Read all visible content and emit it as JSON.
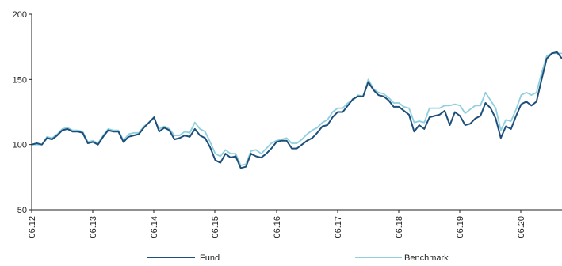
{
  "chart_data": {
    "type": "line",
    "title": "",
    "xlabel": "",
    "ylabel": "",
    "ylim": [
      50,
      200
    ],
    "yticks": [
      50,
      100,
      150,
      200
    ],
    "xticks": [
      "06.12",
      "06.13",
      "06.14",
      "06.15",
      "06.16",
      "06.17",
      "06.18",
      "06.19",
      "06.20"
    ],
    "grid": false,
    "legend_position": "bottom",
    "colors": {
      "Fund": "#1d4f7a",
      "Benchmark": "#8fcfde"
    },
    "series": [
      {
        "name": "Fund",
        "values": [
          100,
          101,
          100,
          105,
          104,
          107,
          111,
          112,
          110,
          110,
          109,
          101,
          102,
          100,
          106,
          111,
          110,
          110,
          102,
          106,
          107,
          108,
          113,
          117,
          121,
          110,
          113,
          111,
          104,
          105,
          107,
          106,
          112,
          107,
          105,
          98,
          88,
          86,
          93,
          90,
          91,
          82,
          83,
          93,
          91,
          90,
          93,
          97,
          102,
          103,
          103,
          97,
          97,
          100,
          103,
          105,
          109,
          114,
          115,
          121,
          125,
          125,
          130,
          135,
          137,
          137,
          148,
          142,
          138,
          137,
          134,
          129,
          129,
          126,
          123,
          110,
          115,
          112,
          121,
          122,
          123,
          126,
          115,
          125,
          122,
          115,
          116,
          120,
          122,
          132,
          128,
          120,
          105,
          114,
          112,
          122,
          131,
          133,
          130,
          133,
          150,
          166,
          170,
          171,
          166
        ]
      },
      {
        "name": "Benchmark",
        "values": [
          100,
          100,
          100,
          106,
          105,
          108,
          112,
          113,
          111,
          111,
          110,
          102,
          103,
          101,
          107,
          112,
          111,
          111,
          103,
          108,
          109,
          109,
          114,
          117,
          120,
          112,
          114,
          112,
          107,
          107,
          110,
          109,
          117,
          112,
          110,
          102,
          93,
          91,
          96,
          93,
          93,
          84,
          85,
          95,
          96,
          93,
          97,
          101,
          103,
          104,
          105,
          101,
          101,
          104,
          108,
          111,
          113,
          117,
          119,
          125,
          128,
          128,
          132,
          134,
          138,
          137,
          150,
          143,
          140,
          139,
          136,
          132,
          132,
          129,
          128,
          117,
          118,
          117,
          128,
          128,
          128,
          130,
          130,
          131,
          130,
          124,
          127,
          130,
          130,
          140,
          134,
          128,
          111,
          119,
          118,
          127,
          138,
          140,
          138,
          140,
          155,
          168,
          170,
          170,
          170
        ]
      }
    ]
  }
}
